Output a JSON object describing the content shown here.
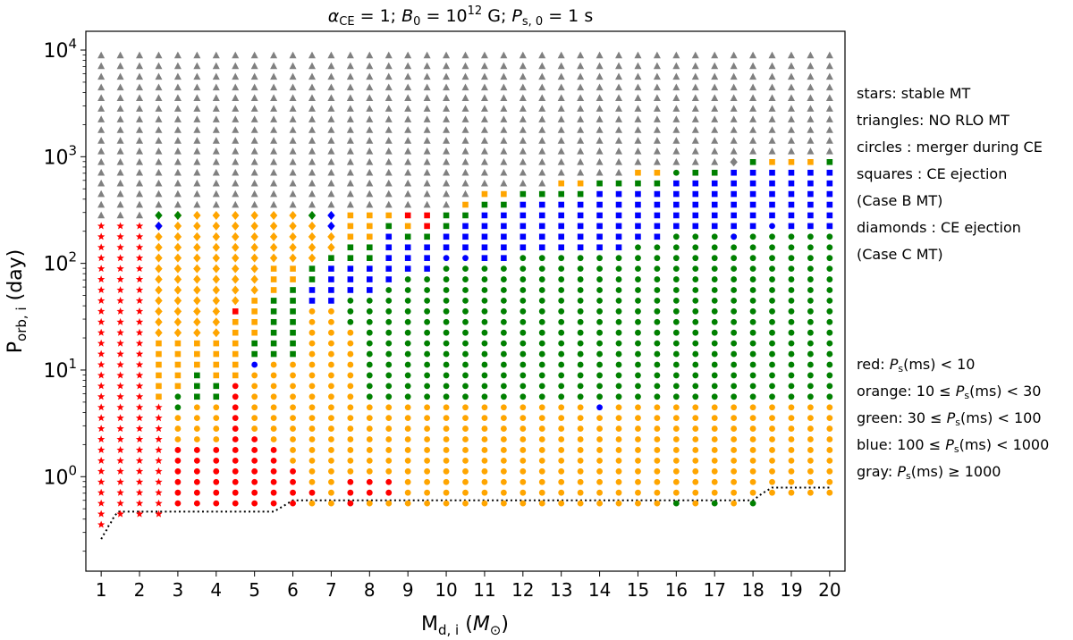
{
  "chart_data": {
    "type": "scatter",
    "title": "α_CE = 1; B_0 = 10^12 G; P_s,0 = 1 s",
    "title_parts": {
      "a1": "α",
      "a1sub": "CE",
      "a2": " = 1; ",
      "b1": "B",
      "b1sub": "0",
      "b2": " = 10",
      "b2sup": "12",
      "b3": " G; ",
      "c1": "P",
      "c1sub": "s, 0",
      "c2": " = 1 s"
    },
    "xlabel_parts": {
      "main": "M",
      "sub": "d, i",
      "rest": " (",
      "m": "M",
      "msub": "⊙",
      "close": ")"
    },
    "ylabel_parts": {
      "main": "P",
      "sub": "orb, i",
      "rest": " (day)"
    },
    "x_ticks": [
      1,
      2,
      3,
      4,
      5,
      6,
      7,
      8,
      9,
      10,
      11,
      12,
      13,
      14,
      15,
      16,
      17,
      18,
      19,
      20
    ],
    "xlim": [
      0.6,
      20.4
    ],
    "y_scale": "log",
    "ylim": [
      0.13,
      15000
    ],
    "y_ticks": [
      {
        "value": 1,
        "base": "10",
        "exp": "0"
      },
      {
        "value": 10,
        "base": "10",
        "exp": "1"
      },
      {
        "value": 100,
        "base": "10",
        "exp": "2"
      },
      {
        "value": 1000,
        "base": "10",
        "exp": "3"
      },
      {
        "value": 10000,
        "base": "10",
        "exp": "4"
      }
    ],
    "grid": false,
    "colors": {
      "red": "#ff0000",
      "orange": "#ffa500",
      "green": "#008000",
      "blue": "#0000ff",
      "gray": "#808080"
    },
    "legend_marker_lines": [
      "stars: stable MT",
      "triangles: NO RLO MT",
      "circles : merger during CE",
      "squares : CE ejection",
      "(Case B MT)",
      "diamonds : CE ejection",
      "(Case C MT)"
    ],
    "legend_color_lines": [
      "red: P_s(ms) < 10",
      "orange: 10 ≤ P_s(ms) < 30",
      "green: 30 ≤ P_s(ms) < 100",
      "blue: 100 ≤ P_s(ms) < 1000",
      "gray: P_s(ms) ≥ 1000"
    ],
    "legend_color_parts": [
      {
        "prefix": "red: ",
        "p": "P",
        "psub": "s",
        "rest": "(ms) < 10"
      },
      {
        "prefix": "orange: 10  ≤ ",
        "p": "P",
        "psub": "s",
        "rest": "(ms) < 30"
      },
      {
        "prefix": "green: 30  ≤ ",
        "p": "P",
        "psub": "s",
        "rest": "(ms) < 100"
      },
      {
        "prefix": "blue: 100  ≤ ",
        "p": "P",
        "psub": "s",
        "rest": "(ms) < 1000"
      },
      {
        "prefix": "gray: ",
        "p": "P",
        "psub": "s",
        "rest": "(ms) ≥ 1000"
      }
    ],
    "boundary_line": {
      "style": "dotted",
      "color": "#000000",
      "x": [
        1.0,
        1.05,
        1.1,
        1.15,
        1.2,
        1.25,
        1.3,
        1.35,
        1.4,
        1.45,
        1.5,
        2,
        2.5,
        3,
        3.5,
        4,
        4.5,
        5,
        5.5,
        5.75,
        6,
        6.5,
        7,
        7.5,
        8,
        8.5,
        9,
        9.5,
        10,
        10.5,
        11,
        11.5,
        12,
        12.5,
        13,
        13.5,
        14,
        14.5,
        15,
        15.5,
        16,
        16.5,
        17,
        17.5,
        18,
        18.25,
        18.5,
        19,
        19.5,
        20
      ],
      "y": [
        0.26,
        0.28,
        0.3,
        0.32,
        0.35,
        0.37,
        0.4,
        0.43,
        0.45,
        0.47,
        0.47,
        0.47,
        0.47,
        0.47,
        0.47,
        0.47,
        0.47,
        0.47,
        0.47,
        0.53,
        0.6,
        0.6,
        0.6,
        0.6,
        0.6,
        0.6,
        0.6,
        0.6,
        0.6,
        0.6,
        0.6,
        0.6,
        0.6,
        0.6,
        0.6,
        0.6,
        0.6,
        0.6,
        0.6,
        0.6,
        0.6,
        0.6,
        0.6,
        0.6,
        0.6,
        0.7,
        0.79,
        0.79,
        0.79,
        0.79
      ]
    },
    "log_p_grid": {
      "start_log10": -0.45,
      "step_log10": 0.1,
      "count": 45
    },
    "columns": [
      {
        "m": 1.0,
        "low": "red:star:0:28",
        "high": "gray:triangle:29:44"
      },
      {
        "m": 1.5,
        "low": "red:star:1:28",
        "high": "gray:triangle:29:44"
      },
      {
        "m": 2.0,
        "low": "red:star:1:28",
        "high": "gray:triangle:29:44"
      },
      {
        "m": 2.5,
        "segments": [
          "red:star:1:11",
          "orange:square:12:17",
          "orange:diamond:18:28",
          "blue:diamond:28:28",
          "green:diamond:29:29",
          "gray:triangle:30:44"
        ]
      },
      {
        "m": 3.0,
        "segments": [
          "red:circle:2:7",
          "orange:circle:8:10",
          "green:circle:11:12",
          "orange:square:13:17",
          "orange:diamond:18:29",
          "green:diamond:29:29",
          "gray:triangle:30:44"
        ]
      },
      {
        "m": 3.5,
        "segments": [
          "red:circle:2:7",
          "orange:circle:8:11",
          "green:square:12:14",
          "orange:square:15:17",
          "orange:diamond:18:29",
          "gray:triangle:30:44"
        ]
      },
      {
        "m": 4.0,
        "segments": [
          "red:circle:2:7",
          "orange:circle:8:11",
          "green:square:12:13",
          "orange:square:14:17",
          "orange:diamond:18:29",
          "gray:triangle:30:44"
        ]
      },
      {
        "m": 4.5,
        "segments": [
          "red:circle:2:13",
          "red:square:20:20",
          "orange:square:14:19",
          "orange:diamond:21:29",
          "gray:triangle:30:44"
        ]
      },
      {
        "m": 5.0,
        "segments": [
          "red:circle:2:8",
          "orange:circle:9:14",
          "blue:circle:15:15",
          "green:square:16:17",
          "orange:square:18:21",
          "orange:diamond:22:29",
          "gray:triangle:30:44"
        ]
      },
      {
        "m": 5.5,
        "segments": [
          "red:circle:2:7",
          "orange:circle:8:15",
          "green:square:16:21",
          "orange:square:22:24",
          "orange:diamond:25:29",
          "gray:triangle:30:44"
        ]
      },
      {
        "m": 6.0,
        "segments": [
          "red:circle:2:5",
          "orange:circle:6:15",
          "green:square:16:22",
          "orange:square:23:24",
          "orange:diamond:25:29",
          "gray:triangle:30:44"
        ]
      },
      {
        "m": 6.5,
        "segments": [
          "red:circle:3:3",
          "orange:circle:2:2",
          "orange:circle:4:20",
          "blue:square:21:22",
          "green:square:23:24",
          "orange:diamond:25:28",
          "green:diamond:29:29",
          "gray:triangle:30:44"
        ]
      },
      {
        "m": 7.0,
        "segments": [
          "orange:circle:2:20",
          "blue:square:21:24",
          "green:square:25:25",
          "orange:diamond:26:27",
          "blue:diamond:28:29",
          "gray:triangle:30:44"
        ]
      },
      {
        "m": 7.5,
        "segments": [
          "red:circle:2:4",
          "orange:circle:5:18",
          "green:circle:19:21",
          "blue:square:22:24",
          "green:square:25:26",
          "orange:square:27:29",
          "gray:triangle:30:44"
        ]
      },
      {
        "m": 8.0,
        "segments": [
          "red:circle:3:4",
          "orange:circle:2:2",
          "orange:circle:5:11",
          "green:circle:12:21",
          "blue:square:22:24",
          "green:square:25:26",
          "orange:square:27:29",
          "gray:triangle:30:44"
        ]
      },
      {
        "m": 8.5,
        "segments": [
          "red:circle:3:4",
          "orange:circle:2:2",
          "orange:circle:5:11",
          "green:circle:12:22",
          "blue:square:23:27",
          "green:square:28:28",
          "orange:square:29:29",
          "gray:triangle:30:44"
        ]
      },
      {
        "m": 9.0,
        "segments": [
          "orange:circle:2:11",
          "green:circle:12:23",
          "blue:square:24:26",
          "green:square:27:27",
          "orange:square:28:28",
          "red:square:29:29",
          "gray:triangle:30:44"
        ]
      },
      {
        "m": 9.5,
        "segments": [
          "orange:circle:2:11",
          "green:circle:12:23",
          "blue:square:24:26",
          "green:square:27:27",
          "red:square:28:29",
          "gray:triangle:30:44"
        ]
      },
      {
        "m": 10.0,
        "segments": [
          "orange:circle:2:11",
          "green:circle:12:24",
          "blue:circle:25:25",
          "blue:square:26:27",
          "green:square:28:29",
          "gray:triangle:30:44"
        ]
      },
      {
        "m": 10.5,
        "segments": [
          "orange:circle:2:11",
          "green:circle:12:24",
          "blue:circle:25:25",
          "blue:square:26:28",
          "green:square:29:29",
          "orange:square:30:30",
          "gray:triangle:31:44"
        ]
      },
      {
        "m": 11.0,
        "segments": [
          "orange:circle:2:11",
          "green:circle:12:24",
          "blue:square:25:29",
          "green:square:30:30",
          "orange:square:31:31",
          "gray:triangle:32:44"
        ]
      },
      {
        "m": 11.5,
        "segments": [
          "orange:circle:2:11",
          "green:circle:12:24",
          "blue:square:25:29",
          "green:square:30:30",
          "orange:square:31:31",
          "gray:triangle:32:44"
        ]
      },
      {
        "m": 12.0,
        "segments": [
          "orange:circle:2:11",
          "green:circle:12:25",
          "blue:square:26:30",
          "green:square:31:31",
          "gray:triangle:32:44"
        ]
      },
      {
        "m": 12.5,
        "segments": [
          "orange:circle:2:11",
          "green:circle:12:25",
          "blue:square:26:30",
          "green:square:31:31",
          "gray:triangle:32:44"
        ]
      },
      {
        "m": 13.0,
        "segments": [
          "orange:circle:2:11",
          "green:circle:12:25",
          "blue:square:26:30",
          "green:square:31:31",
          "orange:square:32:32",
          "gray:triangle:33:44"
        ]
      },
      {
        "m": 13.5,
        "segments": [
          "orange:circle:2:11",
          "green:circle:12:25",
          "blue:square:26:30",
          "green:square:31:31",
          "orange:square:32:32",
          "gray:triangle:33:44"
        ]
      },
      {
        "m": 14.0,
        "segments": [
          "orange:circle:2:10",
          "blue:circle:11:11",
          "green:circle:12:25",
          "blue:square:26:31",
          "green:square:32:32",
          "gray:triangle:33:44"
        ]
      },
      {
        "m": 14.5,
        "segments": [
          "orange:circle:2:11",
          "green:circle:12:25",
          "blue:square:26:31",
          "green:square:32:32",
          "gray:triangle:33:44"
        ]
      },
      {
        "m": 15.0,
        "segments": [
          "orange:circle:2:11",
          "green:circle:12:26",
          "blue:square:27:31",
          "green:square:32:32",
          "orange:square:33:33",
          "gray:triangle:34:44"
        ]
      },
      {
        "m": 15.5,
        "segments": [
          "orange:circle:2:11",
          "green:circle:12:26",
          "blue:square:27:31",
          "green:square:32:32",
          "orange:square:33:33",
          "gray:triangle:34:44"
        ]
      },
      {
        "m": 16.0,
        "segments": [
          "green:circle:2:2",
          "orange:circle:3:11",
          "green:circle:12:27",
          "blue:square:28:32",
          "green:circle:33:33",
          "gray:triangle:34:44"
        ]
      },
      {
        "m": 16.5,
        "segments": [
          "orange:circle:2:11",
          "green:circle:12:27",
          "blue:square:28:32",
          "green:square:33:33",
          "gray:triangle:34:44"
        ]
      },
      {
        "m": 17.0,
        "segments": [
          "green:circle:2:2",
          "orange:circle:3:11",
          "green:circle:12:27",
          "blue:square:28:32",
          "green:square:33:33",
          "gray:triangle:34:44"
        ]
      },
      {
        "m": 17.5,
        "segments": [
          "orange:circle:2:11",
          "green:circle:12:27",
          "blue:circle:27:27",
          "blue:square:28:33",
          "gray:diamond:34:34",
          "gray:triangle:35:44"
        ]
      },
      {
        "m": 18.0,
        "segments": [
          "green:circle:2:2",
          "orange:circle:3:11",
          "green:circle:12:27",
          "blue:square:28:33",
          "green:square:34:34",
          "gray:triangle:35:44"
        ]
      },
      {
        "m": 18.5,
        "segments": [
          "orange:circle:3:11",
          "green:circle:12:27",
          "blue:circle:28:28",
          "blue:square:29:33",
          "orange:square:34:34",
          "gray:triangle:35:44"
        ]
      },
      {
        "m": 19.0,
        "segments": [
          "orange:circle:3:11",
          "green:circle:12:27",
          "blue:square:28:33",
          "orange:square:34:34",
          "gray:triangle:35:44"
        ]
      },
      {
        "m": 19.5,
        "segments": [
          "orange:circle:3:11",
          "green:circle:12:27",
          "blue:square:28:33",
          "orange:square:34:34",
          "gray:triangle:35:44"
        ]
      },
      {
        "m": 20.0,
        "segments": [
          "orange:circle:3:11",
          "green:circle:12:27",
          "blue:square:28:33",
          "green:square:34:34",
          "gray:triangle:35:44"
        ]
      }
    ]
  }
}
